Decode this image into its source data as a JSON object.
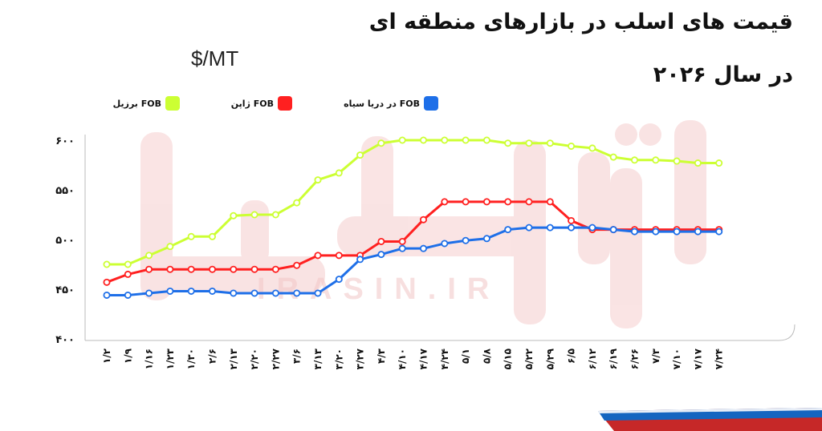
{
  "header": {
    "title_line1": "قیمت های اسلب در بازارهای منطقه ای",
    "title_line2": "در سال ۲۰۲۶",
    "unit": "$/MT"
  },
  "watermark": {
    "text": "IRASIN.IR"
  },
  "colors": {
    "brazil": "#ccff33",
    "japan": "#ff2020",
    "black_sea": "#1e6fe8",
    "grid": "#cccccc"
  },
  "chart_data": {
    "type": "line",
    "title": "قیمت های اسلب در بازارهای منطقه ای در سال ۲۰۲۶",
    "ylabel": "$/MT",
    "ylim": [
      400,
      600
    ],
    "yticks": [
      400,
      450,
      500,
      550,
      600
    ],
    "ytick_labels": [
      "۴۰۰",
      "۴۵۰",
      "۵۰۰",
      "۵۵۰",
      "۶۰۰"
    ],
    "categories": [
      "۱/۲",
      "۱/۹",
      "۱/۱۶",
      "۱/۲۳",
      "۱/۳۰",
      "۲/۶",
      "۲/۱۳",
      "۲/۲۰",
      "۲/۲۷",
      "۳/۶",
      "۳/۱۳",
      "۳/۲۰",
      "۳/۲۷",
      "۴/۳",
      "۴/۱۰",
      "۴/۱۷",
      "۴/۲۴",
      "۵/۱",
      "۵/۸",
      "۵/۱۵",
      "۵/۲۲",
      "۵/۲۹",
      "۶/۵",
      "۶/۱۲",
      "۶/۱۹",
      "۶/۲۶",
      "۷/۳",
      "۷/۱۰",
      "۷/۱۷",
      "۷/۲۴"
    ],
    "legend_position": "top",
    "grid": false,
    "series": [
      {
        "name": "FOB برزیل",
        "color_key": "brazil",
        "values": [
          475,
          475,
          484,
          493,
          503,
          503,
          524,
          525,
          525,
          537,
          560,
          567,
          585,
          597,
          600,
          600,
          600,
          600,
          600,
          597,
          597,
          597,
          594,
          592,
          583,
          580,
          580,
          579,
          577,
          577
        ]
      },
      {
        "name": "FOB ژاپن",
        "color_key": "japan",
        "values": [
          457,
          465,
          470,
          470,
          470,
          470,
          470,
          470,
          470,
          474,
          484,
          484,
          484,
          498,
          498,
          520,
          538,
          538,
          538,
          538,
          538,
          538,
          519,
          510,
          510,
          510,
          510,
          510,
          510,
          510
        ]
      },
      {
        "name": "FOB در دریا سیاه",
        "color_key": "black_sea",
        "values": [
          444,
          444,
          446,
          448,
          448,
          448,
          446,
          446,
          446,
          446,
          446,
          460,
          480,
          485,
          491,
          491,
          496,
          499,
          501,
          510,
          512,
          512,
          512,
          512,
          510,
          508,
          508,
          508,
          508,
          508
        ]
      }
    ]
  }
}
